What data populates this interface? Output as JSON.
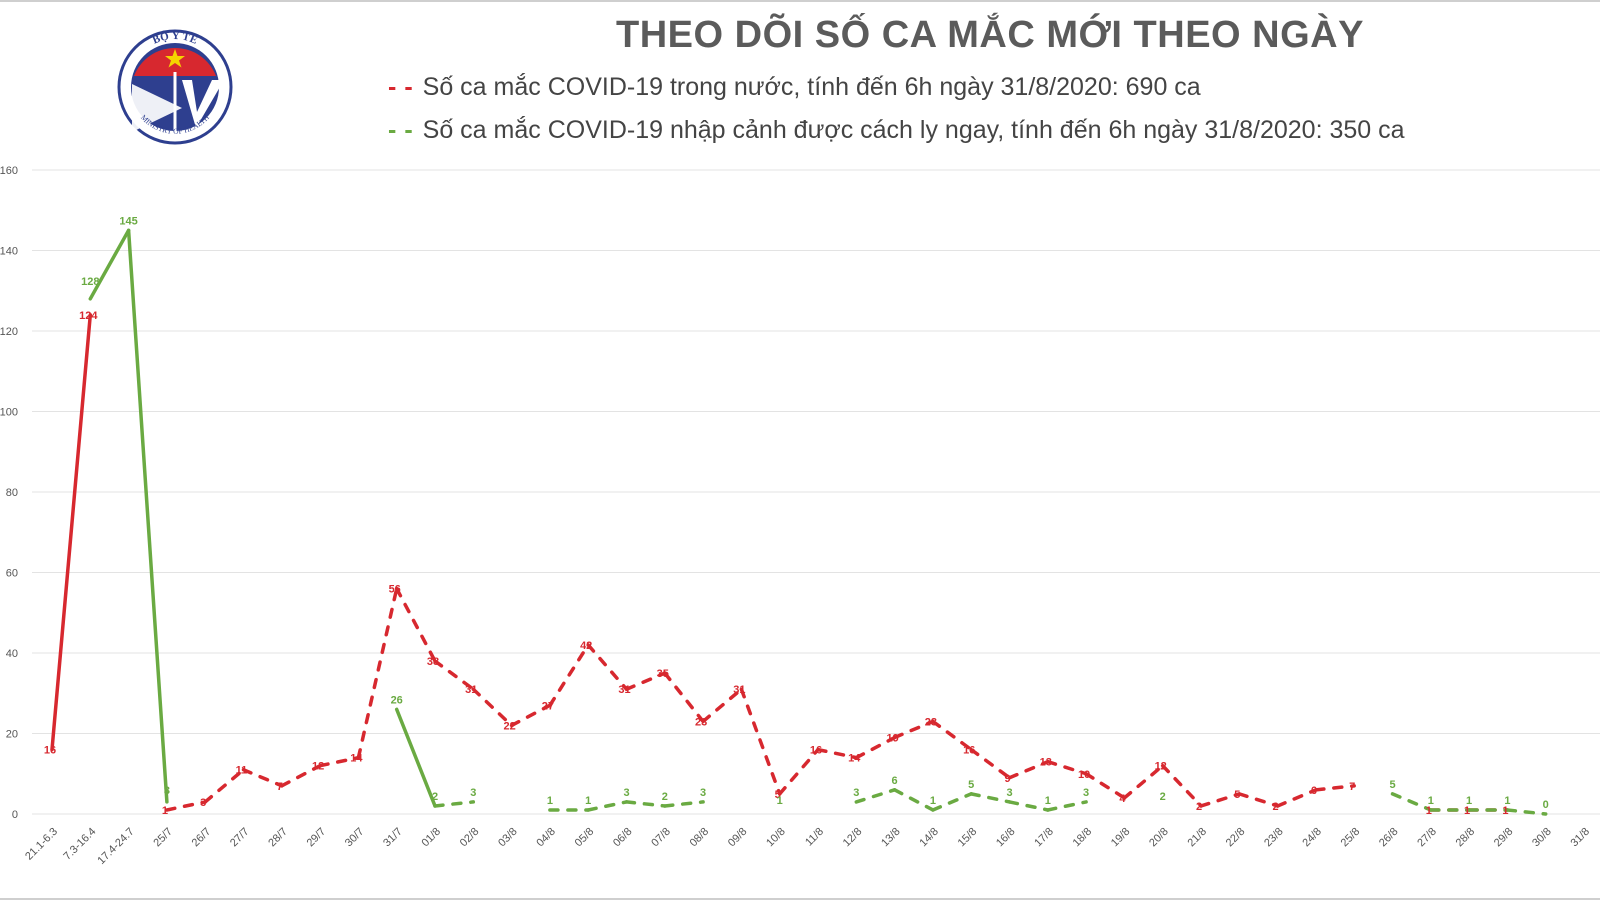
{
  "header": {
    "title": "THEO DÕI SỐ CA MẮC MỚI THEO NGÀY",
    "logo_text_top": "BỘ Y TẾ",
    "logo_text_bottom": "MINISTRY OF HEALTH"
  },
  "colors": {
    "domestic": "#d7282f",
    "imported": "#6aaa42",
    "grid": "#e3e3e3",
    "title": "#5b5b5b"
  },
  "chart_data": {
    "type": "line",
    "title": "THEO DÕI SỐ CA MẮC MỚI THEO NGÀY",
    "ylim": [
      0,
      160
    ],
    "yticks": [
      0,
      20,
      40,
      60,
      80,
      100,
      120,
      140,
      160
    ],
    "grid": true,
    "legend_position": "top",
    "categories": [
      "21.1-6.3",
      "7.3-16.4",
      "17.4-24.7",
      "25/7",
      "26/7",
      "27/7",
      "28/7",
      "29/7",
      "30/7",
      "31/7",
      "01/8",
      "02/8",
      "03/8",
      "04/8",
      "05/8",
      "06/8",
      "07/8",
      "08/8",
      "09/8",
      "10/8",
      "11/8",
      "12/8",
      "13/8",
      "14/8",
      "15/8",
      "16/8",
      "17/8",
      "18/8",
      "19/8",
      "20/8",
      "21/8",
      "22/8",
      "23/8",
      "24/8",
      "25/8",
      "26/8",
      "27/8",
      "28/8",
      "29/8",
      "30/8",
      "31/8"
    ],
    "series": [
      {
        "name": "Số ca mắc COVID-19 trong nước, tính đến 6h ngày 31/8/2020: 690 ca",
        "values": [
          16,
          124,
          null,
          1,
          3,
          11,
          7,
          12,
          14,
          56,
          38,
          31,
          22,
          27,
          42,
          31,
          35,
          23,
          31,
          5,
          16,
          14,
          19,
          23,
          16,
          9,
          13,
          10,
          4,
          12,
          2,
          5,
          2,
          6,
          7,
          null,
          1,
          1,
          1,
          null,
          null
        ]
      },
      {
        "name": "Số ca mắc COVID-19 nhập cảnh được cách ly ngay, tính đến 6h ngày 31/8/2020: 350 ca",
        "values": [
          null,
          128,
          145,
          3,
          null,
          null,
          null,
          null,
          null,
          26,
          2,
          3,
          null,
          1,
          1,
          3,
          2,
          3,
          null,
          1,
          null,
          3,
          6,
          1,
          5,
          3,
          1,
          3,
          null,
          2,
          null,
          null,
          null,
          null,
          null,
          5,
          1,
          1,
          1,
          0,
          null
        ]
      }
    ]
  }
}
